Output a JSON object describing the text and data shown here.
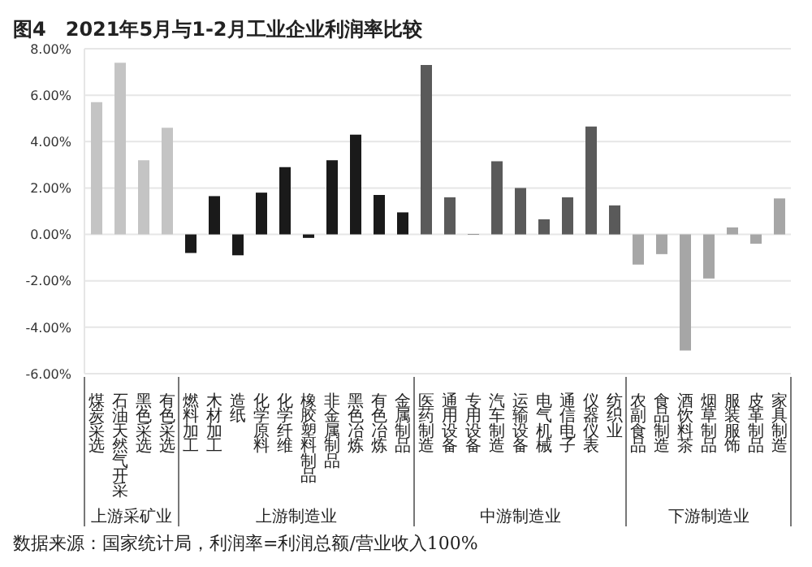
{
  "chart_data": {
    "type": "bar",
    "title": "图4　2021年5月与1-2月工业企业利润率比较",
    "categories": [
      "煤炭采选",
      "石油天然气开采",
      "黑色采选",
      "有色采选",
      "燃料加工",
      "木材加工",
      "造纸",
      "化学原料",
      "化学纤维",
      "橡胶塑料制品",
      "非金属制品",
      "黑色冶炼",
      "有色冶炼",
      "金属制品",
      "医药制造",
      "通用设备",
      "专用设备",
      "汽车制造",
      "运输设备",
      "电气机械",
      "通信电子",
      "仪器仪表",
      "纺织业",
      "农副食品",
      "食品制造",
      "酒饮料茶",
      "烟草制品",
      "服装服饰",
      "皮革制品",
      "家具制造"
    ],
    "values": [
      5.7,
      7.4,
      3.2,
      4.6,
      -0.8,
      1.65,
      -0.9,
      1.8,
      2.9,
      -0.15,
      3.2,
      4.3,
      1.7,
      0.95,
      7.3,
      1.6,
      0.02,
      3.15,
      2.0,
      0.65,
      1.6,
      4.65,
      1.25,
      -1.3,
      -0.85,
      -5.0,
      -1.9,
      0.3,
      -0.4,
      1.55
    ],
    "colors": [
      "#c4c4c4",
      "#c4c4c4",
      "#c4c4c4",
      "#c4c4c4",
      "#1a1a1a",
      "#1a1a1a",
      "#1a1a1a",
      "#1a1a1a",
      "#1a1a1a",
      "#1a1a1a",
      "#1a1a1a",
      "#1a1a1a",
      "#1a1a1a",
      "#1a1a1a",
      "#5a5a5a",
      "#5a5a5a",
      "#5a5a5a",
      "#5a5a5a",
      "#5a5a5a",
      "#5a5a5a",
      "#5a5a5a",
      "#5a5a5a",
      "#5a5a5a",
      "#a6a6a6",
      "#a6a6a6",
      "#a6a6a6",
      "#a6a6a6",
      "#a6a6a6",
      "#a6a6a6",
      "#a6a6a6"
    ],
    "ylim": [
      -6,
      8
    ],
    "yticks": [
      {
        "value": -6,
        "label": "-6.00%"
      },
      {
        "value": -4,
        "label": "-4.00%"
      },
      {
        "value": -2,
        "label": "-2.00%"
      },
      {
        "value": 0,
        "label": "0.00%"
      },
      {
        "value": 2,
        "label": "2.00%"
      },
      {
        "value": 4,
        "label": "4.00%"
      },
      {
        "value": 6,
        "label": "6.00%"
      },
      {
        "value": 8,
        "label": "8.00%"
      }
    ],
    "grid": "y",
    "annotations": [
      "上游采矿业",
      "上游制造业",
      "中游制造业",
      "下游制造业",
      "数据来源：国家统计局，利润率=利润总额/营业收入100%"
    ]
  }
}
